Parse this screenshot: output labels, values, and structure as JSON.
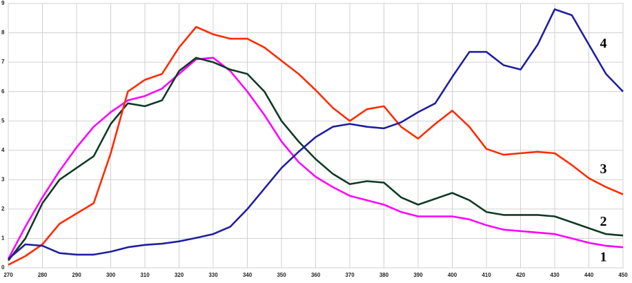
{
  "chart_data": {
    "type": "line",
    "x": [
      270,
      275,
      280,
      285,
      290,
      295,
      300,
      305,
      310,
      315,
      320,
      325,
      330,
      335,
      340,
      345,
      350,
      355,
      360,
      365,
      370,
      375,
      380,
      385,
      390,
      395,
      400,
      405,
      410,
      415,
      420,
      425,
      430,
      435,
      440,
      445,
      450
    ],
    "series": [
      {
        "name": "1",
        "color": "#ff00ff",
        "values": [
          0.3,
          1.4,
          2.4,
          3.3,
          4.1,
          4.8,
          5.3,
          5.7,
          5.85,
          6.1,
          6.6,
          7.1,
          7.15,
          6.7,
          6.0,
          5.2,
          4.3,
          3.6,
          3.1,
          2.75,
          2.45,
          2.3,
          2.15,
          1.9,
          1.75,
          1.75,
          1.75,
          1.65,
          1.45,
          1.3,
          1.25,
          1.2,
          1.15,
          1.0,
          0.85,
          0.75,
          0.7
        ]
      },
      {
        "name": "2",
        "color": "#0f3a26",
        "values": [
          0.25,
          1.0,
          2.2,
          3.0,
          3.4,
          3.8,
          4.9,
          5.6,
          5.5,
          5.7,
          6.7,
          7.15,
          7.0,
          6.75,
          6.6,
          6.0,
          5.0,
          4.3,
          3.7,
          3.2,
          2.85,
          2.95,
          2.9,
          2.4,
          2.15,
          2.35,
          2.55,
          2.3,
          1.9,
          1.8,
          1.8,
          1.8,
          1.75,
          1.55,
          1.35,
          1.15,
          1.1
        ]
      },
      {
        "name": "3",
        "color": "#ff2a00",
        "values": [
          0.1,
          0.4,
          0.8,
          1.5,
          1.85,
          2.2,
          3.9,
          6.0,
          6.4,
          6.6,
          7.5,
          8.2,
          7.95,
          7.8,
          7.8,
          7.5,
          7.05,
          6.6,
          6.05,
          5.45,
          5.0,
          5.4,
          5.5,
          4.8,
          4.4,
          4.9,
          5.35,
          4.8,
          4.05,
          3.85,
          3.9,
          3.95,
          3.9,
          3.5,
          3.05,
          2.75,
          2.5
        ]
      },
      {
        "name": "4",
        "color": "#1f1f9e",
        "values": [
          0.3,
          0.8,
          0.75,
          0.5,
          0.45,
          0.45,
          0.55,
          0.7,
          0.78,
          0.82,
          0.9,
          1.02,
          1.15,
          1.4,
          2.0,
          2.7,
          3.4,
          3.95,
          4.45,
          4.8,
          4.9,
          4.8,
          4.75,
          4.95,
          5.3,
          5.6,
          6.5,
          7.35,
          7.35,
          6.9,
          6.75,
          7.6,
          8.8,
          8.6,
          7.6,
          6.6,
          6.0
        ]
      }
    ],
    "xlim": [
      270,
      450
    ],
    "xticks": [
      270,
      280,
      290,
      300,
      310,
      320,
      330,
      340,
      350,
      360,
      370,
      380,
      390,
      400,
      410,
      420,
      430,
      440,
      450
    ],
    "ylim": [
      0,
      9
    ],
    "yticks": [
      0,
      1,
      2,
      3,
      4,
      5,
      6,
      7,
      8,
      9
    ],
    "grid": true
  }
}
